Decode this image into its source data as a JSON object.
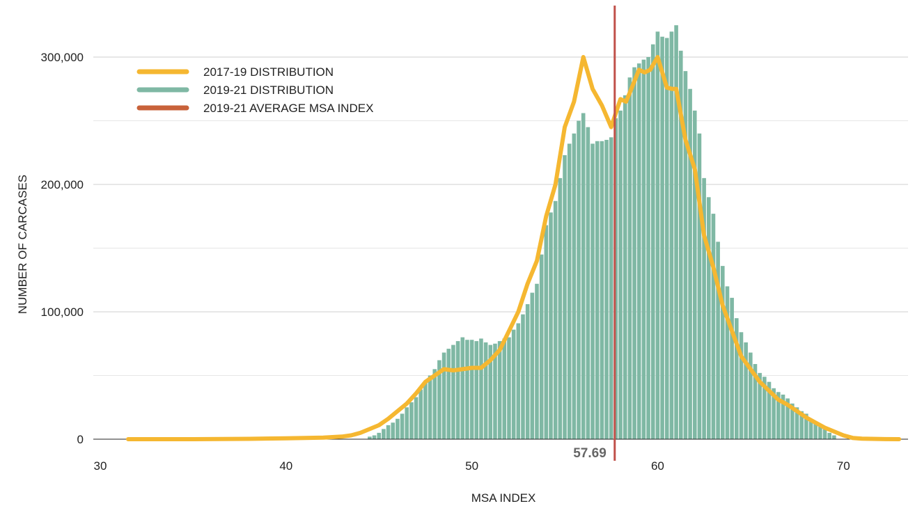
{
  "chart_data": {
    "type": "bar",
    "xlabel": "MSA INDEX",
    "ylabel": "NUMBER OF CARCASES",
    "xlim": [
      30,
      73.3
    ],
    "ylim": [
      0,
      300000
    ],
    "grid": true,
    "legend_position": "top-left",
    "x_ticks": [
      {
        "value": 30,
        "label": "30"
      },
      {
        "value": 40,
        "label": "40"
      },
      {
        "value": 50,
        "label": "50"
      },
      {
        "value": 60,
        "label": "60"
      },
      {
        "value": 70,
        "label": "70"
      }
    ],
    "y_ticks": [
      {
        "value": 0,
        "label": "0"
      },
      {
        "value": 100000,
        "label": "100,000"
      },
      {
        "value": 200000,
        "label": "200,000"
      },
      {
        "value": 300000,
        "label": "300,000"
      }
    ],
    "legend": [
      {
        "label": "2017-19 DISTRIBUTION",
        "color": "#f5b731"
      },
      {
        "label": "2019-21 DISTRIBUTION",
        "color": "#7fb8a4"
      },
      {
        "label": "2019-21 AVERAGE MSA INDEX",
        "color": "#c8623a"
      }
    ],
    "average": {
      "value": 57.69,
      "label": "57.69",
      "color": "#c0514a"
    },
    "series": [
      {
        "name": "2019-21 DISTRIBUTION",
        "type": "bar",
        "color": "#7fb8a4",
        "x": [
          44.5,
          44.75,
          45,
          45.25,
          45.5,
          45.75,
          46,
          46.25,
          46.5,
          46.75,
          47,
          47.25,
          47.5,
          47.75,
          48,
          48.25,
          48.5,
          48.75,
          49,
          49.25,
          49.5,
          49.75,
          50,
          50.25,
          50.5,
          50.75,
          51,
          51.25,
          51.5,
          51.75,
          52,
          52.25,
          52.5,
          52.75,
          53,
          53.25,
          53.5,
          53.75,
          54,
          54.25,
          54.5,
          54.75,
          55,
          55.25,
          55.5,
          55.75,
          56,
          56.25,
          56.5,
          56.75,
          57,
          57.25,
          57.5,
          57.75,
          58,
          58.25,
          58.5,
          58.75,
          59,
          59.25,
          59.5,
          59.75,
          60,
          60.25,
          60.5,
          60.75,
          61,
          61.25,
          61.5,
          61.75,
          62,
          62.25,
          62.5,
          62.75,
          63,
          63.25,
          63.5,
          63.75,
          64,
          64.25,
          64.5,
          64.75,
          65,
          65.25,
          65.5,
          65.75,
          66,
          66.25,
          66.5,
          66.75,
          67,
          67.25,
          67.5,
          67.75,
          68,
          68.25,
          68.5,
          68.75,
          69,
          69.25,
          69.5
        ],
        "values": [
          2000,
          3000,
          5000,
          8000,
          11000,
          13000,
          16000,
          20000,
          25000,
          29000,
          33000,
          39000,
          45000,
          50000,
          55000,
          62000,
          68000,
          71000,
          74000,
          77000,
          80000,
          78000,
          78000,
          77000,
          79000,
          76000,
          74000,
          75000,
          77000,
          79000,
          80000,
          86000,
          91000,
          98000,
          106000,
          115000,
          122000,
          145000,
          168000,
          178000,
          187000,
          205000,
          223000,
          232000,
          240000,
          250000,
          256000,
          245000,
          232000,
          234000,
          234000,
          235000,
          237000,
          252000,
          258000,
          270000,
          284000,
          292000,
          295000,
          298000,
          300000,
          310000,
          320000,
          316000,
          315000,
          320000,
          325000,
          305000,
          289000,
          275000,
          258000,
          240000,
          205000,
          190000,
          177000,
          155000,
          136000,
          120000,
          111000,
          95000,
          84000,
          76000,
          68000,
          59000,
          52000,
          49000,
          45000,
          40000,
          37000,
          35000,
          32000,
          28000,
          25000,
          22000,
          20000,
          16000,
          13000,
          10000,
          8000,
          5000,
          3000
        ]
      },
      {
        "name": "2017-19 DISTRIBUTION",
        "type": "line",
        "color": "#f5b731",
        "x": [
          31.5,
          35,
          38,
          40,
          42,
          43,
          43.5,
          44,
          44.5,
          45,
          45.5,
          46,
          46.5,
          47,
          47.5,
          48,
          48.5,
          49,
          49.5,
          50,
          50.5,
          51,
          51.5,
          52,
          52.5,
          53,
          53.5,
          54,
          54.5,
          55,
          55.5,
          56,
          56.5,
          57,
          57.5,
          58,
          58.3,
          58.5,
          59,
          59.3,
          59.6,
          60,
          60.5,
          60.8,
          61,
          61.5,
          62,
          62.5,
          63,
          63.5,
          64,
          64.5,
          65,
          65.5,
          66,
          66.5,
          67,
          67.5,
          68,
          68.5,
          69,
          69.5,
          70,
          70.5,
          71,
          72,
          73
        ],
        "values": [
          0,
          0,
          300,
          700,
          1200,
          2000,
          3000,
          5000,
          8000,
          11000,
          16000,
          22000,
          28000,
          36000,
          45000,
          50000,
          55000,
          54000,
          55000,
          56000,
          56000,
          62000,
          70000,
          85000,
          100000,
          122000,
          140000,
          175000,
          200000,
          245000,
          265000,
          300000,
          275000,
          262000,
          245000,
          267000,
          265000,
          272000,
          290000,
          288000,
          290000,
          300000,
          276000,
          275000,
          275000,
          235000,
          212000,
          160000,
          135000,
          105000,
          85000,
          65000,
          55000,
          45000,
          38000,
          31000,
          27000,
          22000,
          17000,
          13000,
          9000,
          6000,
          3000,
          1000,
          400,
          100,
          0
        ]
      }
    ]
  }
}
